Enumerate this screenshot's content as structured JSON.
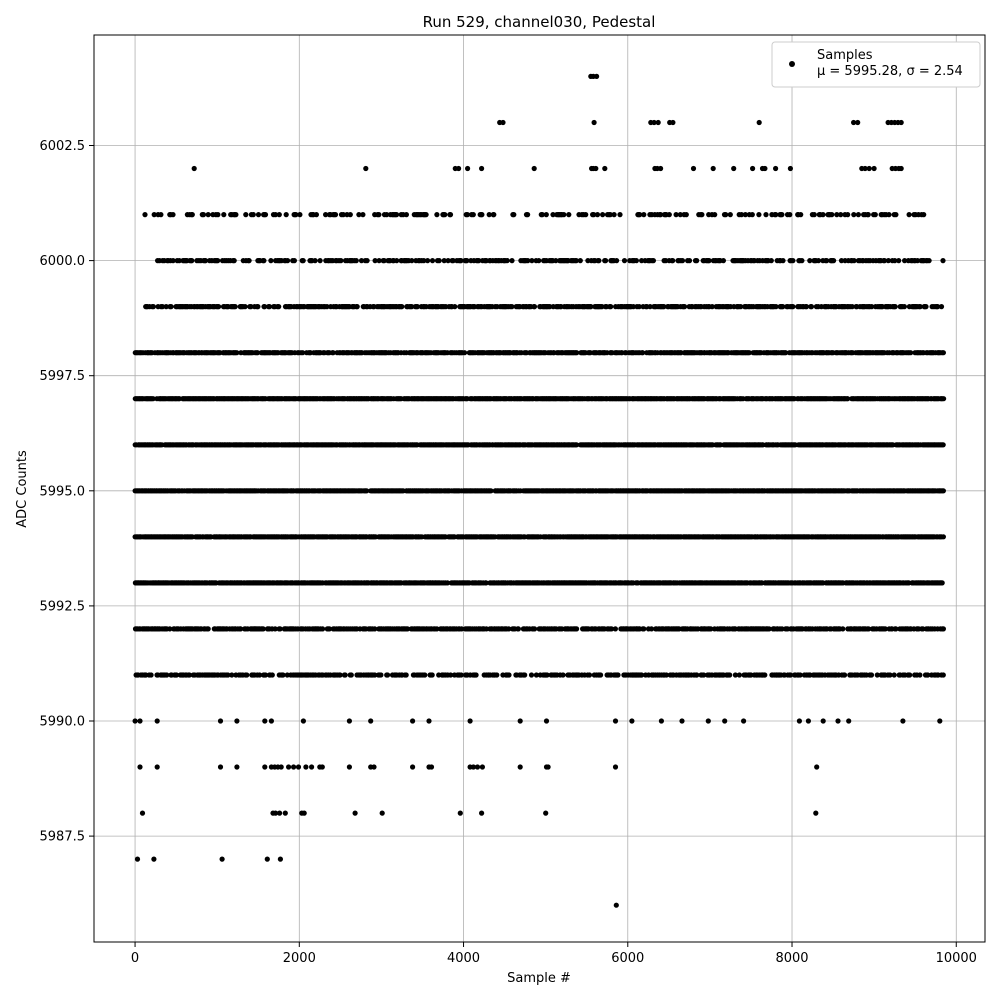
{
  "chart_data": {
    "type": "scatter",
    "title": "Run 529, channel030, Pedestal",
    "xlabel": "Sample #",
    "ylabel": "ADC Counts",
    "xlim": [
      -500,
      10350
    ],
    "ylim": [
      5985.2,
      6004.9
    ],
    "xticks": [
      0,
      2000,
      4000,
      6000,
      8000,
      10000
    ],
    "xtick_labels": [
      "0",
      "2000",
      "4000",
      "6000",
      "8000",
      "10000"
    ],
    "yticks": [
      5987.5,
      5990.0,
      5992.5,
      5995.0,
      5997.5,
      6000.0,
      6002.5
    ],
    "ytick_labels": [
      "5987.5",
      "5990.0",
      "5992.5",
      "5995.0",
      "5997.5",
      "6000.0",
      "6002.5"
    ],
    "grid": true,
    "legend": {
      "placement": "top-right",
      "label": "Samples",
      "stats": "μ = 5995.28, σ = 2.54"
    },
    "point_color": "#000000",
    "n_samples": 9850,
    "series": [
      {
        "name": "Samples",
        "levels": [
          {
            "y": 5986,
            "x": [
              5860
            ]
          },
          {
            "y": 5987,
            "x": [
              30,
              230,
              1060,
              1610,
              1770
            ]
          },
          {
            "y": 5988,
            "x": [
              90,
              1680,
              1710,
              1760,
              1830,
              2030,
              2060,
              2680,
              3010,
              3960,
              4220,
              5000,
              8290
            ]
          },
          {
            "y": 5989,
            "x": [
              60,
              270,
              1040,
              1240,
              1580,
              1660,
              1700,
              1740,
              1780,
              1870,
              1930,
              1990,
              2080,
              2150,
              2250,
              2280,
              2610,
              2870,
              2910,
              3380,
              3580,
              3610,
              4080,
              4120,
              4170,
              4230,
              4690,
              5010,
              5030,
              5850,
              8300
            ]
          },
          {
            "y": 5990,
            "x": [
              0,
              60,
              270,
              1040,
              1240,
              1580,
              1660,
              2050,
              2610,
              2870,
              3380,
              3580,
              4080,
              4690,
              5010,
              5850,
              6050,
              6410,
              6660,
              6980,
              7180,
              7410,
              8090,
              8200,
              8380,
              8560,
              8690,
              9350,
              9800
            ]
          }
        ],
        "bands": [
          {
            "y": 5991,
            "x_start": 0,
            "x_end": 9850,
            "density": 0.5
          },
          {
            "y": 5992,
            "x_start": 0,
            "x_end": 9850,
            "density": 0.65
          },
          {
            "y": 5993,
            "x_start": 0,
            "x_end": 9850,
            "density": 0.85
          },
          {
            "y": 5994,
            "x_start": 0,
            "x_end": 9850,
            "density": 0.9
          },
          {
            "y": 5995,
            "x_start": 0,
            "x_end": 9850,
            "density": 0.92
          },
          {
            "y": 5996,
            "x_start": 0,
            "x_end": 9850,
            "density": 0.9
          },
          {
            "y": 5997,
            "x_start": 0,
            "x_end": 9850,
            "density": 0.88
          },
          {
            "y": 5998,
            "x_start": 0,
            "x_end": 9850,
            "density": 0.7
          },
          {
            "y": 5999,
            "x_start": 100,
            "x_end": 9850,
            "density": 0.55
          },
          {
            "y": 6000,
            "x_start": 270,
            "x_end": 9850,
            "density": 0.4
          },
          {
            "y": 6001,
            "x_start": 120,
            "x_end": 9600,
            "density": 0.25
          }
        ],
        "outliers": [
          {
            "y": 6002,
            "x": [
              720,
              2810,
              3900,
              3940,
              4050,
              4220,
              4860,
              5560,
              5580,
              5610,
              5720,
              6330,
              6360,
              6400,
              6800,
              7040,
              7290,
              7520,
              7640,
              7670,
              7800,
              7980,
              8850,
              8890,
              8940,
              9000,
              9220,
              9260,
              9300,
              9330
            ]
          },
          {
            "y": 6003,
            "x": [
              4440,
              4480,
              5590,
              6280,
              6320,
              6370,
              6510,
              6550,
              7600,
              8750,
              8800,
              9170,
              9210,
              9250,
              9290,
              9330
            ]
          },
          {
            "y": 6004,
            "x": [
              5550,
              5580,
              5620
            ]
          }
        ]
      }
    ]
  }
}
